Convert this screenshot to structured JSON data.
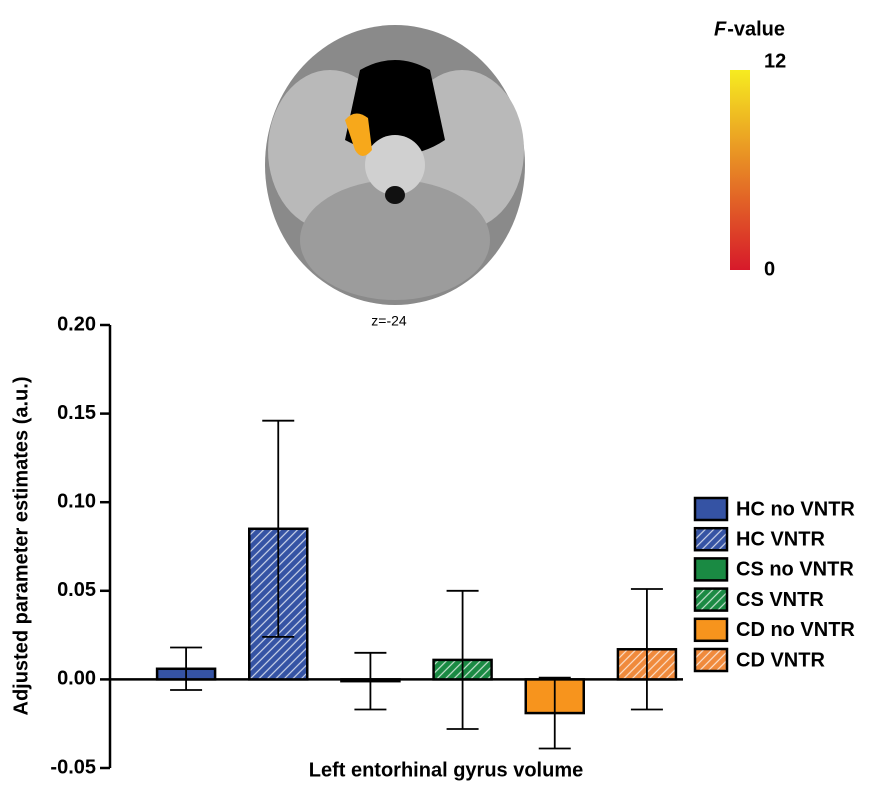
{
  "chart_data": {
    "type": "bar",
    "xlabel": "Left entorhinal gyrus volume",
    "ylabel": "Adjusted parameter estimates (a.u.)",
    "ylim": [
      -0.05,
      0.2
    ],
    "yticks": [
      -0.05,
      {
        "value": 0,
        "label": "0.00"
      },
      0.05,
      {
        "value": 0.1,
        "label": "0.10"
      },
      0.15,
      {
        "value": 0.2,
        "label": "0.20"
      }
    ],
    "series": [
      {
        "name": "HC no VNTR",
        "color": "#3553a4",
        "hatch": false,
        "values": [
          0.006
        ],
        "errors": [
          0.012
        ]
      },
      {
        "name": "HC VNTR",
        "color": "#3553a4",
        "hatch": true,
        "values": [
          0.085
        ],
        "errors": [
          0.061
        ]
      },
      {
        "name": "CS no VNTR",
        "color": "#1a8a43",
        "hatch": false,
        "values": [
          -0.001
        ],
        "errors": [
          0.016
        ]
      },
      {
        "name": "CS VNTR",
        "color": "#1a8a43",
        "hatch": true,
        "values": [
          0.011
        ],
        "errors": [
          0.039
        ]
      },
      {
        "name": "CD no VNTR",
        "color": "#f7941d",
        "hatch": false,
        "values": [
          -0.019
        ],
        "errors": [
          0.02
        ]
      },
      {
        "name": "CD VNTR",
        "color": "#f08a3c",
        "hatch": true,
        "values": [
          0.017
        ],
        "errors": [
          0.034
        ]
      }
    ],
    "annotation": "z=-24",
    "colorbar": {
      "title_italic": "F",
      "title_rest": "-value",
      "lim": [
        0,
        12
      ],
      "ticks": [
        0,
        12
      ],
      "colors": [
        "#d7192a",
        "#f6ec20"
      ]
    }
  }
}
